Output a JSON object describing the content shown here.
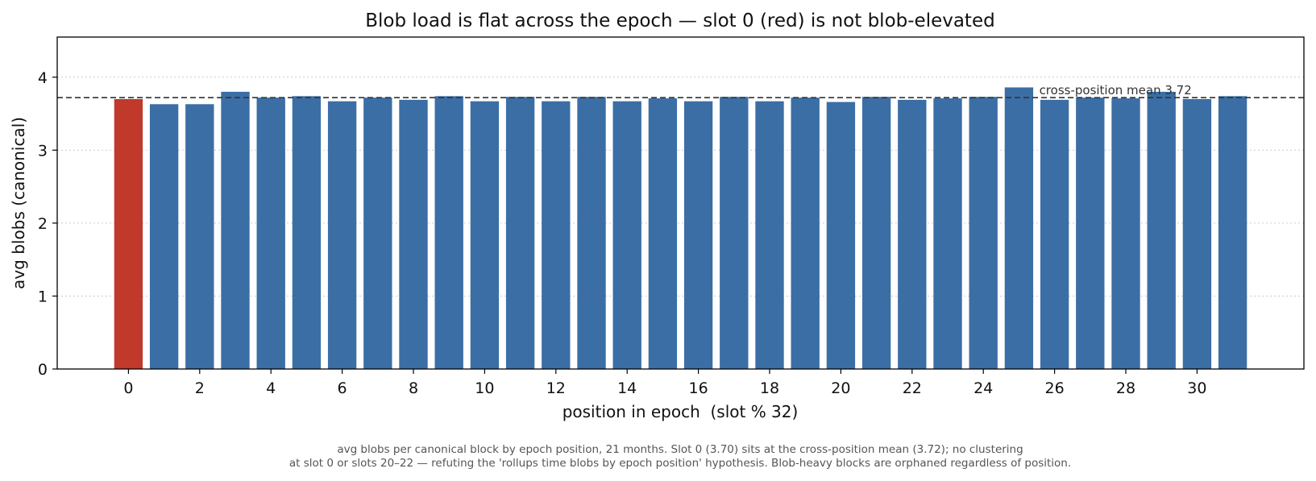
{
  "chart_data": {
    "type": "bar",
    "title": "Blob load is flat across the epoch — slot 0 (red) is not blob-elevated",
    "xlabel": "position in epoch  (slot % 32)",
    "ylabel": "avg blobs (canonical)",
    "categories": [
      0,
      1,
      2,
      3,
      4,
      5,
      6,
      7,
      8,
      9,
      10,
      11,
      12,
      13,
      14,
      15,
      16,
      17,
      18,
      19,
      20,
      21,
      22,
      23,
      24,
      25,
      26,
      27,
      28,
      29,
      30,
      31
    ],
    "values": [
      3.7,
      3.63,
      3.63,
      3.8,
      3.72,
      3.74,
      3.67,
      3.72,
      3.69,
      3.74,
      3.67,
      3.73,
      3.67,
      3.73,
      3.67,
      3.71,
      3.67,
      3.73,
      3.67,
      3.72,
      3.66,
      3.73,
      3.69,
      3.71,
      3.73,
      3.86,
      3.69,
      3.72,
      3.71,
      3.8,
      3.7,
      3.74
    ],
    "highlight_index": 0,
    "bar_color": "#3b6ea5",
    "highlight_color": "#c0392b",
    "xlim": [
      -2,
      33
    ],
    "ylim": [
      0,
      4.55
    ],
    "xticks": [
      0,
      2,
      4,
      6,
      8,
      10,
      12,
      14,
      16,
      18,
      20,
      22,
      24,
      26,
      28,
      30
    ],
    "yticks": [
      0,
      1,
      2,
      3,
      4
    ],
    "grid": "horizontal dotted",
    "reference_line": {
      "value": 3.72,
      "label": "cross-position mean 3.72",
      "style": "dashed"
    },
    "caption": [
      "avg blobs per canonical block by epoch position, 21 months. Slot 0 (3.70) sits at the cross-position mean (3.72); no clustering",
      "at slot 0 or slots 20–22 — refuting the 'rollups time blobs by epoch position' hypothesis. Blob-heavy blocks are orphaned regardless of position."
    ]
  }
}
